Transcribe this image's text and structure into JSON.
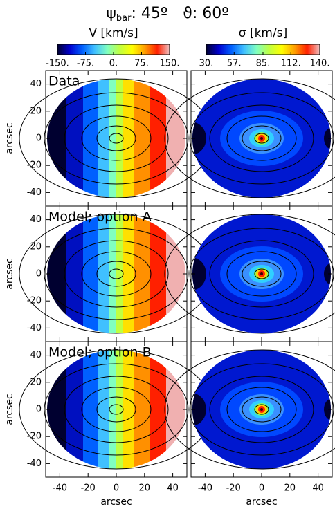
{
  "header": {
    "psi": "ψ",
    "psi_sub": "bar",
    "psi_value": ": 45º",
    "theta": "ϑ: 60º"
  },
  "colorbars": [
    {
      "label": "V [km/s]",
      "range": [
        -150,
        150
      ],
      "ticks": [
        {
          "value": -150,
          "label": "-150."
        },
        {
          "value": -75,
          "label": "-75."
        },
        {
          "value": 0,
          "label": "0."
        },
        {
          "value": 75,
          "label": "75."
        },
        {
          "value": 150,
          "label": "150."
        }
      ],
      "colors": [
        "#000030",
        "#0000d0",
        "#0060ff",
        "#40c0ff",
        "#80ffc0",
        "#c0ff40",
        "#ffff00",
        "#ffa000",
        "#ff2000",
        "#f0c0c0"
      ]
    },
    {
      "label": "σ [km/s]",
      "range": [
        30,
        140
      ],
      "ticks": [
        {
          "value": 30,
          "label": "30."
        },
        {
          "value": 57,
          "label": "57."
        },
        {
          "value": 85,
          "label": "85."
        },
        {
          "value": 112,
          "label": "112."
        },
        {
          "value": 140,
          "label": "140."
        }
      ],
      "colors": [
        "#000030",
        "#0000d0",
        "#0060ff",
        "#40c0ff",
        "#80ffc0",
        "#c0ff40",
        "#ffff00",
        "#ffa000",
        "#ff2000",
        "#f0c0c0"
      ]
    }
  ],
  "chart_data": [
    {
      "type": "map",
      "title": "Data",
      "ylabel": "arcsec",
      "xlim": [
        -50,
        50
      ],
      "ylim": [
        -50,
        50
      ],
      "xticks": [
        -40,
        -20,
        0,
        20,
        40
      ],
      "yticks": [
        -40,
        -20,
        0,
        20,
        40
      ]
    },
    {
      "type": "map",
      "xlim": [
        -50,
        50
      ],
      "ylim": [
        -50,
        50
      ],
      "xticks": [
        -40,
        -20,
        0,
        20,
        40
      ],
      "yticks": [
        -40,
        -20,
        0,
        20,
        40
      ]
    },
    {
      "type": "map",
      "title": "Model; option A",
      "ylabel": "arcsec",
      "xlim": [
        -50,
        50
      ],
      "ylim": [
        -50,
        50
      ],
      "xticks": [
        -40,
        -20,
        0,
        20,
        40
      ],
      "yticks": [
        -40,
        -20,
        0,
        20,
        40
      ]
    },
    {
      "type": "map",
      "xlim": [
        -50,
        50
      ],
      "ylim": [
        -50,
        50
      ],
      "xticks": [
        -40,
        -20,
        0,
        20,
        40
      ],
      "yticks": [
        -40,
        -20,
        0,
        20,
        40
      ]
    },
    {
      "type": "map",
      "title": "Model; option B",
      "ylabel": "arcsec",
      "xlabel": "arcsec",
      "xlim": [
        -50,
        50
      ],
      "ylim": [
        -50,
        50
      ],
      "xticks": [
        -40,
        -20,
        0,
        20,
        40
      ],
      "yticks": [
        -40,
        -20,
        0,
        20,
        40
      ]
    },
    {
      "type": "map",
      "xlabel": "arcsec",
      "xlim": [
        -50,
        50
      ],
      "ylim": [
        -50,
        50
      ],
      "xticks": [
        -40,
        -20,
        0,
        20,
        40
      ],
      "yticks": [
        -40,
        -20,
        0,
        20,
        40
      ]
    }
  ]
}
